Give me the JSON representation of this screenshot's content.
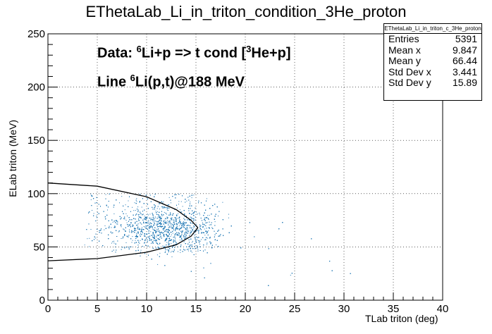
{
  "chart_data": {
    "type": "scatter",
    "title": "EThetaLab_Li_in_triton_condition_3He_proton",
    "xlabel": "TLab triton (deg)",
    "ylabel": "ELab triton (MeV)",
    "xlim": [
      0,
      40
    ],
    "ylim": [
      0,
      250
    ],
    "x_ticks": [
      "0",
      "5",
      "10",
      "15",
      "20",
      "25",
      "30",
      "35",
      "40"
    ],
    "y_ticks": [
      "0",
      "50",
      "100",
      "150",
      "200",
      "250"
    ],
    "grid": true,
    "point_color": "#1f77b4",
    "line_color": "#000000",
    "cloud": {
      "x_range": [
        2,
        16
      ],
      "y_range": [
        40,
        100
      ],
      "dense_center": [
        12,
        68
      ]
    },
    "kinematic_line": {
      "upper": [
        [
          0,
          110
        ],
        [
          5,
          107
        ],
        [
          10,
          97
        ],
        [
          13,
          85
        ],
        [
          14.5,
          75
        ],
        [
          15.2,
          68
        ]
      ],
      "lower": [
        [
          0,
          37
        ],
        [
          5,
          39
        ],
        [
          10,
          45
        ],
        [
          13,
          52
        ],
        [
          14.5,
          60
        ],
        [
          15.2,
          68
        ]
      ]
    },
    "annotations": [
      {
        "prefix": "Data: ",
        "sup1": "6",
        "mid": "Li+p => t cond [",
        "sup2": "3",
        "suffix": "He+p]"
      },
      {
        "prefix": "Line ",
        "sup1": "6",
        "mid": "Li(p,t)@188 MeV",
        "sup2": "",
        "suffix": ""
      }
    ]
  },
  "stats_box": {
    "name": "EThetaLab_Li_in_triton_c_3He_proton",
    "rows": [
      {
        "label": "Entries",
        "value": "5391"
      },
      {
        "label": "Mean x",
        "value": "9.847"
      },
      {
        "label": "Mean y",
        "value": "66.44"
      },
      {
        "label": "Std Dev x",
        "value": "3.441"
      },
      {
        "label": "Std Dev y",
        "value": "15.89"
      }
    ]
  }
}
